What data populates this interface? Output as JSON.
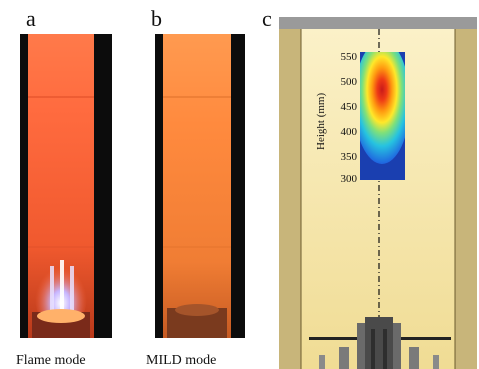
{
  "panels": {
    "a": {
      "letter": "a",
      "caption": "Flame mode"
    },
    "b": {
      "letter": "b",
      "caption": "MILD mode"
    },
    "c": {
      "letter": "c"
    }
  },
  "inset": {
    "ylabel": "Height (mm)",
    "yticks": [
      "550",
      "500",
      "450",
      "400",
      "350",
      "300"
    ]
  },
  "colors": {
    "flame_orange": "#ff6a3c",
    "mild_orange": "#ff8a3e",
    "furnace_fill": "#f7e7a6",
    "wall_fill": "#c8b57a",
    "frame_gray": "#9a9a9a"
  }
}
